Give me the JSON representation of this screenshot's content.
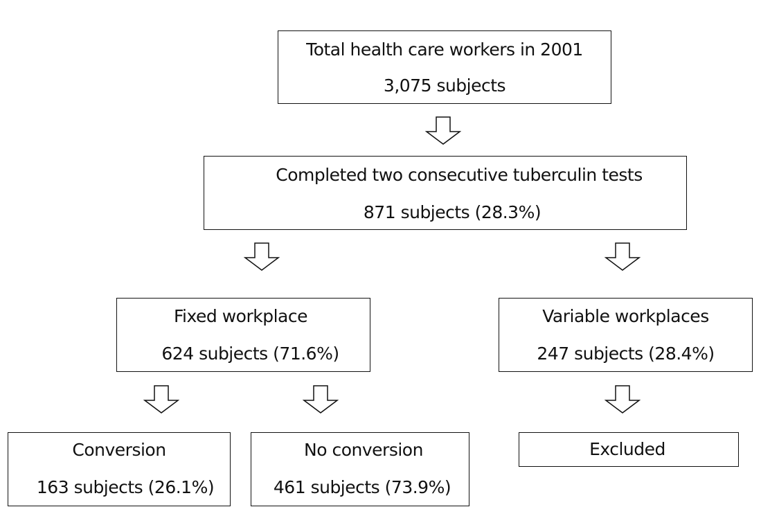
{
  "boxes": {
    "total": {
      "title": "Total health care workers in 2001",
      "count": "3,075 subjects"
    },
    "completed": {
      "title": "Completed two consecutive tuberculin tests",
      "count": "871 subjects (28.3%)"
    },
    "fixed": {
      "title": "Fixed workplace",
      "count": "624 subjects (71.6%)"
    },
    "variable": {
      "title": "Variable workplaces",
      "count": "247 subjects (28.4%)"
    },
    "conversion": {
      "title": "Conversion",
      "count": "163 subjects (26.1%)"
    },
    "no_conversion": {
      "title": "No conversion",
      "count": "461 subjects (73.9%)"
    },
    "excluded": {
      "title": "Excluded"
    }
  },
  "arrow_icon": "hollow-down-arrow-icon"
}
